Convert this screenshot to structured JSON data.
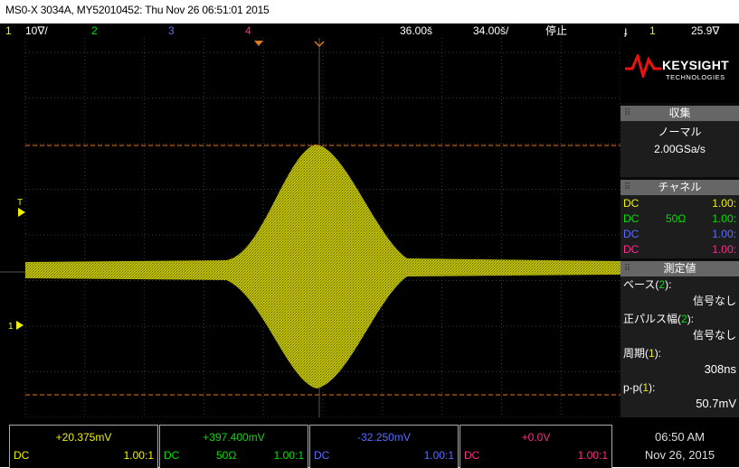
{
  "title": "MS0-X 3034A, MY52010452: Thu Nov 26 06:51:01 2015",
  "status_bar": {
    "ch1_num": "1",
    "ch1_scale": "10∇/",
    "ch2_num": "2",
    "ch3_num": "3",
    "ch4_num": "4",
    "timebase_delay": "36.00š",
    "timebase_scale": "34.00š/",
    "run_state": "停止",
    "trigger_icon": "ɟ",
    "trigger_source": "1",
    "trigger_level": "25.9∇"
  },
  "screen_markers": {
    "trigger_level_marker": "T",
    "ch1_ground_marker": "1"
  },
  "logo": {
    "brand": "KEYSIGHT",
    "sub": "TECHNOLOGIES"
  },
  "acquisition": {
    "header": "収集",
    "mode": "ノーマル",
    "sample_rate": "2.00GSa/s"
  },
  "channels": {
    "header": "チャネル",
    "rows": [
      {
        "coupling": "DC",
        "impedance": "",
        "scale": "1.00:"
      },
      {
        "coupling": "DC",
        "impedance": "50Ω",
        "scale": "1.00:"
      },
      {
        "coupling": "DC",
        "impedance": "",
        "scale": "1.00:"
      },
      {
        "coupling": "DC",
        "impedance": "",
        "scale": "1.00:"
      }
    ]
  },
  "measurements": {
    "header": "測定値",
    "items": [
      {
        "label": "ベース(",
        "ch": "2",
        "suffix": "):",
        "value": "信号なし"
      },
      {
        "label": "正パルス幅(",
        "ch": "2",
        "suffix": "):",
        "value": "信号なし"
      },
      {
        "label": "周期(",
        "ch": "1",
        "suffix": "):",
        "value": "308ns"
      },
      {
        "label": "p-p(",
        "ch": "1",
        "suffix": "):",
        "value": "50.7mV"
      }
    ]
  },
  "channel_bar": [
    {
      "offset": "+20.375mV",
      "coupling": "DC",
      "impedance": "",
      "scale": "1.00:1",
      "color": "#f0f000"
    },
    {
      "offset": "+397.400mV",
      "coupling": "DC",
      "impedance": "50Ω",
      "scale": "1.00:1",
      "color": "#00e000"
    },
    {
      "offset": "-32.250mV",
      "coupling": "DC",
      "impedance": "",
      "scale": "1.00:1",
      "color": "#5a6cff"
    },
    {
      "offset": "+0.0V",
      "coupling": "DC",
      "impedance": "",
      "scale": "1.00:1",
      "color": "#ff2a8a"
    }
  ],
  "clock": {
    "time": "06:50 AM",
    "date": "Nov 26, 2015"
  },
  "colors": {
    "ch1": "#f0f000",
    "ch2": "#00e000",
    "ch3": "#5a6cff",
    "ch4": "#ff2a8a",
    "cursor": "#e07820"
  }
}
